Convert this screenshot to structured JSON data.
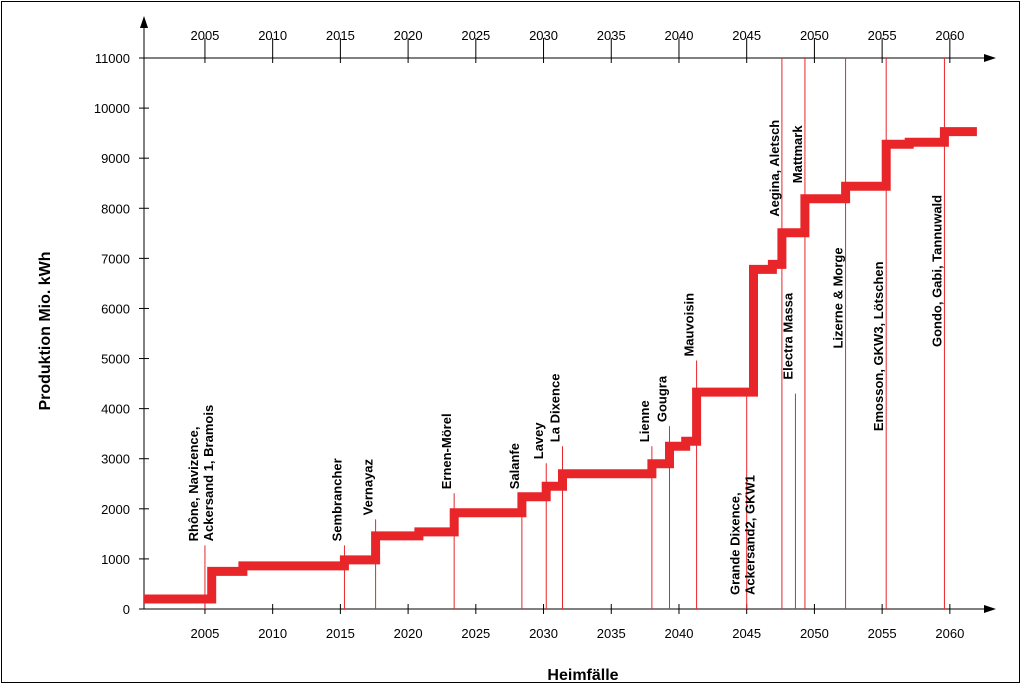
{
  "chart_data": {
    "type": "line",
    "xlabel": "Heimfälle",
    "ylabel": "Produktion Mio. kWh",
    "xlim": [
      2000.5,
      2062.3
    ],
    "ylim": [
      0,
      11000
    ],
    "x_ticks": [
      2005,
      2010,
      2015,
      2020,
      2025,
      2030,
      2035,
      2040,
      2045,
      2050,
      2055,
      2060
    ],
    "y_ticks": [
      0,
      1000,
      2000,
      3000,
      4000,
      5000,
      6000,
      7000,
      8000,
      9000,
      10000,
      11000
    ],
    "series": [
      {
        "color": "#e8262a",
        "points": [
          [
            2000.5,
            200
          ],
          [
            2005.0,
            200
          ],
          [
            2005.5,
            200
          ],
          [
            2005.5,
            750
          ],
          [
            2007.8,
            750
          ],
          [
            2007.8,
            860
          ],
          [
            2015.3,
            860
          ],
          [
            2015.3,
            980
          ],
          [
            2017.6,
            980
          ],
          [
            2017.6,
            1460
          ],
          [
            2020.8,
            1460
          ],
          [
            2020.8,
            1540
          ],
          [
            2023.4,
            1540
          ],
          [
            2023.4,
            1920
          ],
          [
            2028.4,
            1920
          ],
          [
            2028.4,
            2240
          ],
          [
            2030.2,
            2240
          ],
          [
            2030.2,
            2450
          ],
          [
            2031.4,
            2450
          ],
          [
            2031.4,
            2700
          ],
          [
            2038.0,
            2700
          ],
          [
            2038.0,
            2900
          ],
          [
            2039.3,
            2900
          ],
          [
            2039.3,
            3250
          ],
          [
            2040.5,
            3250
          ],
          [
            2040.5,
            3350
          ],
          [
            2041.3,
            3350
          ],
          [
            2041.3,
            4330
          ],
          [
            2045.5,
            4330
          ],
          [
            2045.5,
            6780
          ],
          [
            2046.9,
            6780
          ],
          [
            2046.9,
            6880
          ],
          [
            2047.6,
            6880
          ],
          [
            2047.6,
            7510
          ],
          [
            2049.3,
            7510
          ],
          [
            2049.3,
            8190
          ],
          [
            2052.3,
            8190
          ],
          [
            2052.3,
            8440
          ],
          [
            2055.3,
            8440
          ],
          [
            2055.3,
            9280
          ],
          [
            2057.0,
            9280
          ],
          [
            2057.0,
            9320
          ],
          [
            2059.6,
            9320
          ],
          [
            2059.6,
            9530
          ],
          [
            2062.0,
            9530
          ]
        ]
      }
    ],
    "events": [
      {
        "label": [
          "Rhône, Navizence,",
          "Ackersand 1, Bramois"
        ],
        "x": 2005.0,
        "y_top": 1270,
        "label_y": 1270
      },
      {
        "label": [
          "Sembrancher"
        ],
        "x": 2015.3,
        "y_top": 1270,
        "label_y": 1270
      },
      {
        "label": [
          "Vernayaz"
        ],
        "x": 2017.6,
        "y_top": 1790,
        "label_y": 1790
      },
      {
        "label": [
          "Ernen-Mörel"
        ],
        "x": 2023.4,
        "y_top": 2310,
        "label_y": 2310
      },
      {
        "label": [
          "Salanfe"
        ],
        "x": 2028.4,
        "y_top": 2310,
        "label_y": 2310
      },
      {
        "label": [
          "Lavey"
        ],
        "x": 2030.2,
        "y_top": 2910,
        "label_y": 2910
      },
      {
        "label": [
          "La Dixence"
        ],
        "x": 2031.4,
        "y_top": 3250,
        "label_y": 3250
      },
      {
        "label": [
          "Lienne"
        ],
        "x": 2038.0,
        "y_top": 3250,
        "label_y": 3250
      },
      {
        "label": [
          "Gougra"
        ],
        "x": 2039.3,
        "y_top": 3650,
        "label_y": 3650
      },
      {
        "label": [
          "Mauvoisin"
        ],
        "x": 2041.3,
        "y_top": 4960,
        "label_y": 4960
      },
      {
        "label": [
          "Grande Dixence,",
          "Ackersand2, GKW1"
        ],
        "x": 2045.0,
        "y_top": 4300,
        "label_y": 200
      },
      {
        "label": [
          "Aegina, Aletsch"
        ],
        "x": 2047.6,
        "y_top": 11000,
        "label_y": 7750
      },
      {
        "label": [
          "Electra Massa"
        ],
        "x": 2048.6,
        "y_top": 4300,
        "label_y": 4500
      },
      {
        "label": [
          "Mattmark"
        ],
        "x": 2049.3,
        "y_top": 11000,
        "label_y": 8420
      },
      {
        "label": [
          "Lizerne & Morge"
        ],
        "x": 2052.3,
        "y_top": 11000,
        "label_y": 5120
      },
      {
        "label": [
          "Emosson, GKW3, Lötschen"
        ],
        "x": 2055.3,
        "y_top": 11000,
        "label_y": 3470
      },
      {
        "label": [
          "Gondo, Gabi, Tannuwald"
        ],
        "x": 2059.6,
        "y_top": 11000,
        "label_y": 5150
      }
    ]
  }
}
